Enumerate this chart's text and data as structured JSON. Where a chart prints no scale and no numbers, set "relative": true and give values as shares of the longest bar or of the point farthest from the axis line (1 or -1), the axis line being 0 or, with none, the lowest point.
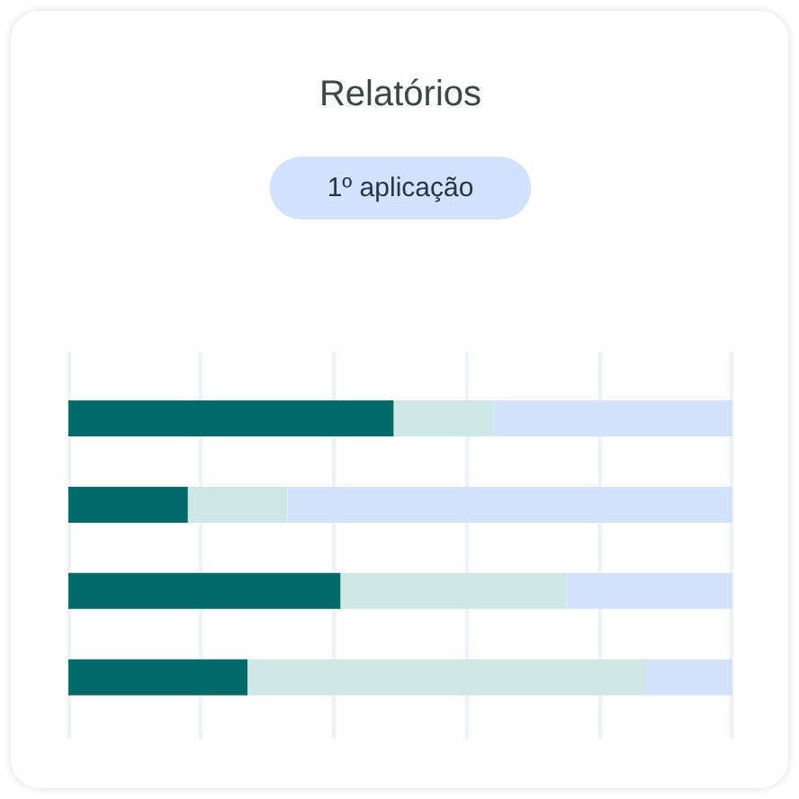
{
  "chart_data": {
    "type": "bar",
    "title": "Relatórios",
    "subtitle": "1º aplicação",
    "orientation": "horizontal",
    "stacked": true,
    "relative": true,
    "categories": [
      null,
      null,
      null,
      null
    ],
    "series": [
      {
        "color": "#016b69",
        "values": [
          0.49,
          0.18,
          0.41,
          0.27
        ]
      },
      {
        "color": "#cee8e5",
        "values": [
          0.15,
          0.15,
          0.34,
          0.6
        ]
      },
      {
        "color": "#d4e3fc",
        "values": [
          0.36,
          0.67,
          0.25,
          0.13
        ]
      }
    ],
    "grid": "x"
  }
}
